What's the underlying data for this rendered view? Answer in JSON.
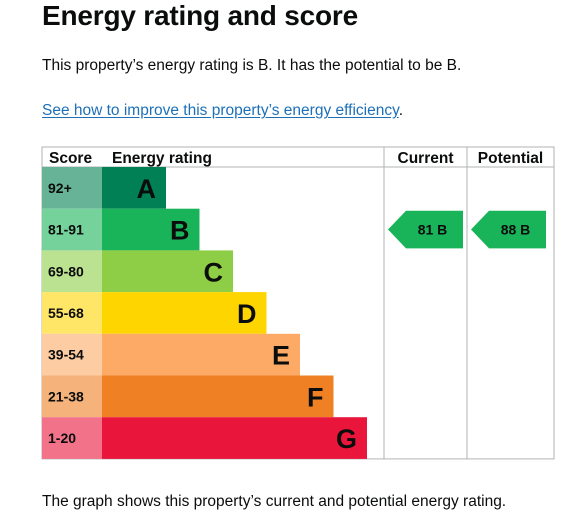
{
  "heading": "Energy rating and score",
  "summary": "This property’s energy rating is B. It has the potential to be B.",
  "improve_link": "See how to improve this property’s energy efficiency",
  "improve_suffix": ".",
  "footer": "The graph shows this property’s current and potential energy rating.",
  "chart_data": {
    "type": "bar",
    "columns": [
      "Score",
      "Energy rating",
      "Current",
      "Potential"
    ],
    "bands": [
      {
        "score": "92+",
        "letter": "A",
        "color": "#008054"
      },
      {
        "score": "81-91",
        "letter": "B",
        "color": "#19b459"
      },
      {
        "score": "69-80",
        "letter": "C",
        "color": "#8dce46"
      },
      {
        "score": "55-68",
        "letter": "D",
        "color": "#ffd500"
      },
      {
        "score": "39-54",
        "letter": "E",
        "color": "#fcaa65"
      },
      {
        "score": "21-38",
        "letter": "F",
        "color": "#ef8023"
      },
      {
        "score": "1-20",
        "letter": "G",
        "color": "#e9153b"
      }
    ],
    "current": {
      "value": 81,
      "band": "B",
      "label": "81 B"
    },
    "potential": {
      "value": 88,
      "band": "B",
      "label": "88 B"
    }
  }
}
